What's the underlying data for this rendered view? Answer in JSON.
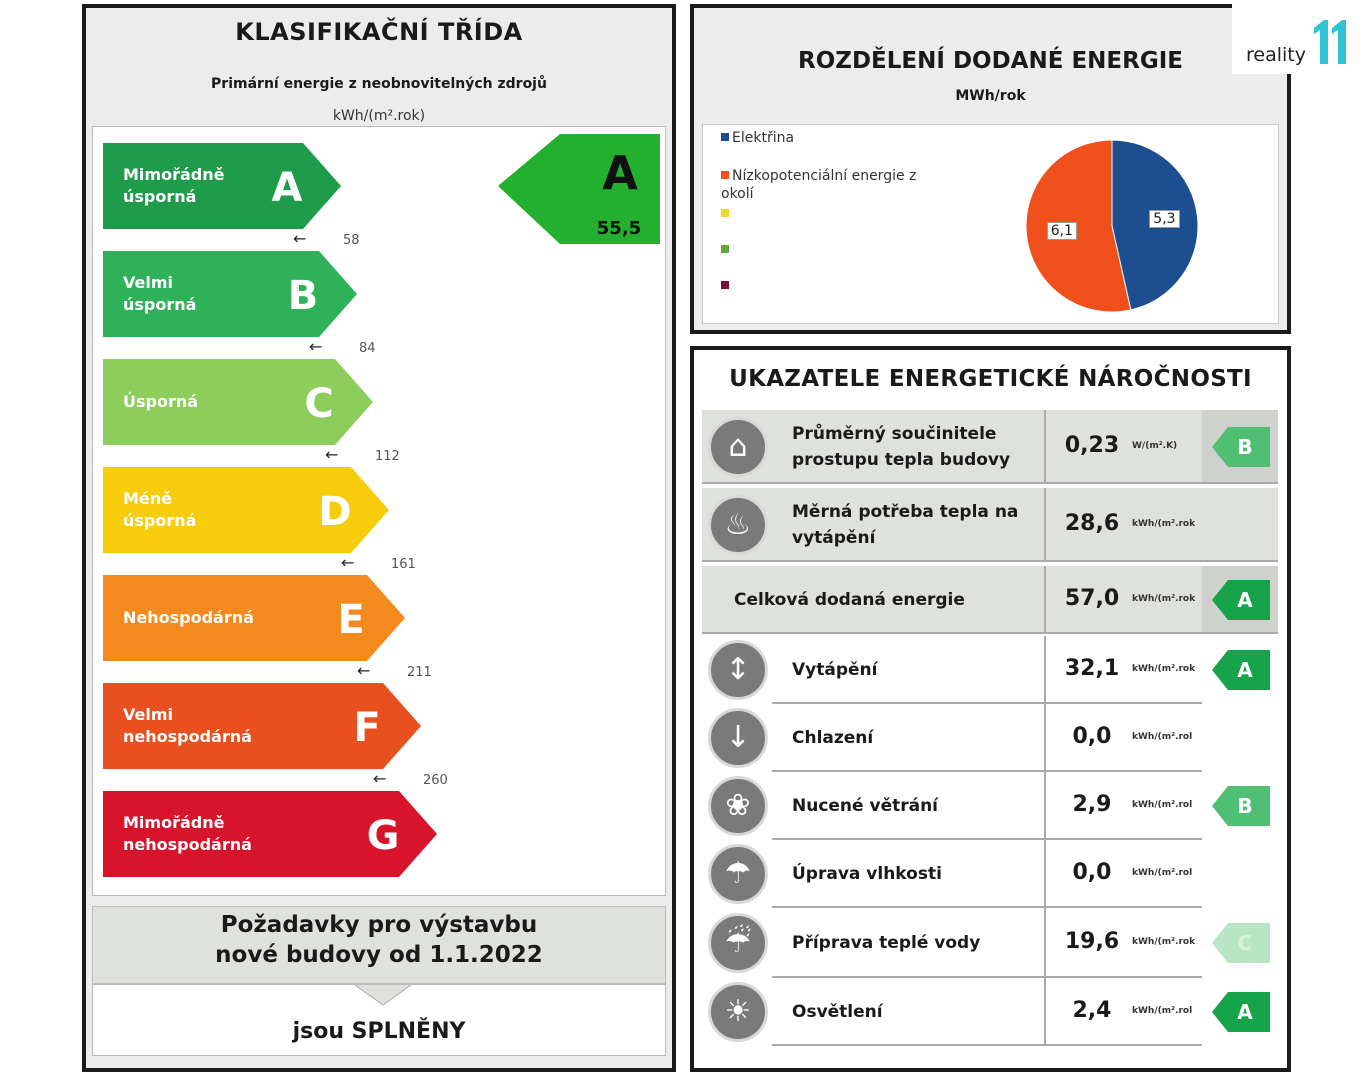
{
  "left": {
    "title": "KLASIFIKAČNÍ TŘÍDA",
    "subtitle": "Primární energie z neobnovitelných zdrojů",
    "unit": "kWh/(m².rok)",
    "classes": [
      {
        "letter": "A",
        "label": "Mimořádně\núsporná",
        "color": "#1e9b4b"
      },
      {
        "letter": "B",
        "label": "Velmi\núsporná",
        "color": "#2fb15a"
      },
      {
        "letter": "C",
        "label": "Úsporná",
        "color": "#8ccd5c"
      },
      {
        "letter": "D",
        "label": "Méně\núsporná",
        "color": "#f7cc0a"
      },
      {
        "letter": "E",
        "label": "Nehospodárná",
        "color": "#f48a1d"
      },
      {
        "letter": "F",
        "label": "Velmi\nnehospodárná",
        "color": "#e9501f"
      },
      {
        "letter": "G",
        "label": "Mimořádně\nnehospodárná",
        "color": "#d8132c"
      }
    ],
    "thresholds": [
      "58",
      "84",
      "112",
      "161",
      "211",
      "260"
    ],
    "rating": {
      "letter": "A",
      "value": "55,5",
      "color": "#22b02e"
    },
    "requirement": {
      "line1": "Požadavky pro výstavbu",
      "line2": "nové budovy od 1.1.2022",
      "result": "jsou SPLNĚNY"
    }
  },
  "energy": {
    "title": "ROZDĚLENÍ DODANÉ ENERGIE",
    "unit": "MWh/rok",
    "legend": [
      {
        "label": "Elektřina",
        "color": "#1d4e8f"
      },
      {
        "label": "Nízkopotenciální energie z\nokolí",
        "color": "#f0501c"
      },
      {
        "label": "",
        "color": "#f5d532"
      },
      {
        "label": "",
        "color": "#63a73a"
      },
      {
        "label": "",
        "color": "#7b1233"
      }
    ]
  },
  "chart_data": {
    "type": "pie",
    "categories": [
      "Elektřina",
      "Nízkopotenciální energie z okolí"
    ],
    "values": [
      5.3,
      6.1
    ],
    "labels": [
      "5,3",
      "6,1"
    ],
    "colors": [
      "#1d4e8f",
      "#f0501c"
    ],
    "legend": "left"
  },
  "logo": {
    "text": "reality",
    "mark": "11",
    "color": "#2ec3d6"
  },
  "indicators": {
    "title": "UKAZATELE ENERGETICKÉ NÁROČNOSTI",
    "rows": [
      {
        "label": "Průměrný součinitele\nprostupu tepla budovy",
        "value": "0,23",
        "unit": "W/(m².K)",
        "badge": "B",
        "icon": "house-icon"
      },
      {
        "label": "Měrná potřeba tepla na\nvytápění",
        "value": "28,6",
        "unit": "kWh/(m².rok",
        "badge": "",
        "icon": "heater-icon"
      },
      {
        "label": "Celková dodaná energie",
        "value": "57,0",
        "unit": "kWh/(m².rok",
        "badge": "A",
        "icon": ""
      },
      {
        "label": "Vytápění",
        "value": "32,1",
        "unit": "kWh/(m².rok",
        "badge": "A",
        "icon": "heating-thermometer-icon"
      },
      {
        "label": "Chlazení",
        "value": "0,0",
        "unit": "kWh/(m².rol",
        "badge": "",
        "icon": "cooling-thermometer-icon"
      },
      {
        "label": "Nucené větrání",
        "value": "2,9",
        "unit": "kWh/(m².rol",
        "badge": "B",
        "icon": "fan-icon"
      },
      {
        "label": "Úprava vlhkosti",
        "value": "0,0",
        "unit": "kWh/(m².rol",
        "badge": "",
        "icon": "humidity-icon"
      },
      {
        "label": "Příprava teplé vody",
        "value": "19,6",
        "unit": "kWh/(m².rok",
        "badge": "C",
        "icon": "faucet-icon"
      },
      {
        "label": "Osvětlení",
        "value": "2,4",
        "unit": "kWh/(m².rol",
        "badge": "A",
        "icon": "light-bulb-icon"
      }
    ]
  }
}
